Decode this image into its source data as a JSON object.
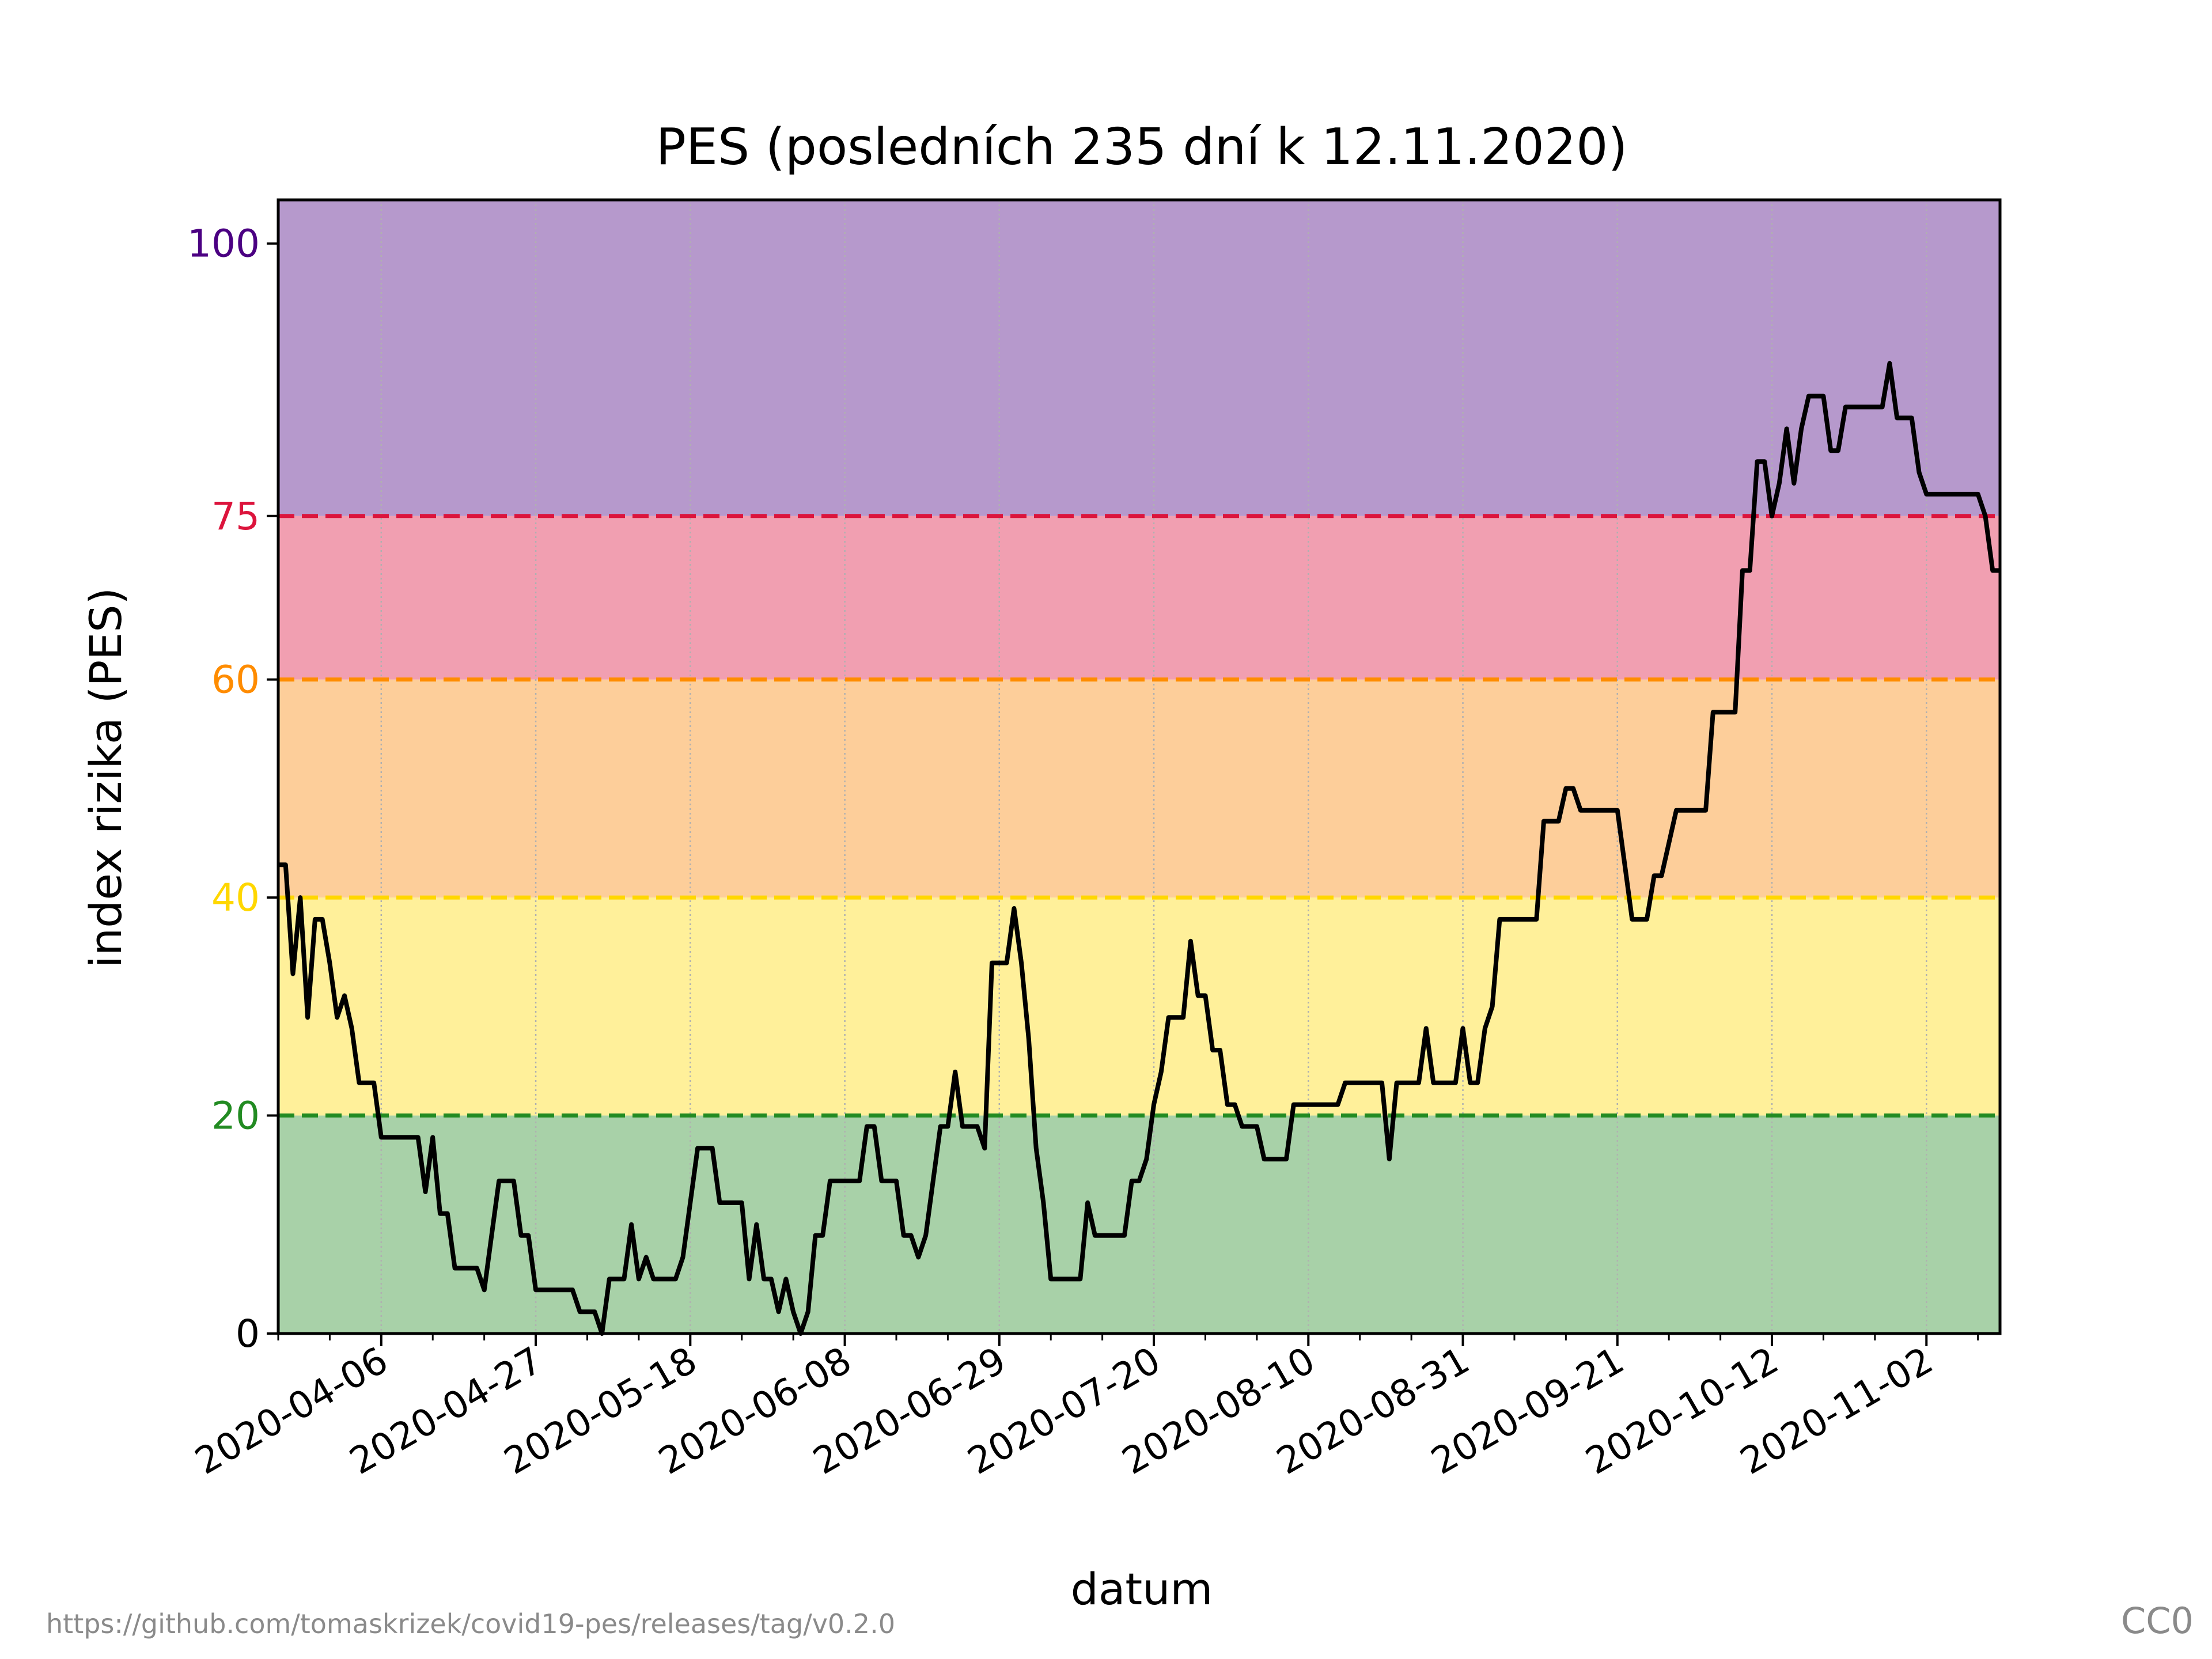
{
  "chart_data": {
    "type": "line",
    "title": "PES (posledních 235 dní k 12.11.2020)",
    "xlabel": "datum",
    "ylabel": "index rizika (PES)",
    "start_date": "2020-03-23",
    "end_date": "2020-11-12",
    "ylim": [
      0,
      100
    ],
    "yticks": [
      {
        "value": 0,
        "label": "0",
        "color": "#000000"
      },
      {
        "value": 20,
        "label": "20",
        "color": "#228b22"
      },
      {
        "value": 40,
        "label": "40",
        "color": "#ffd700"
      },
      {
        "value": 60,
        "label": "60",
        "color": "#ff8c00"
      },
      {
        "value": 75,
        "label": "75",
        "color": "#dc143c"
      },
      {
        "value": 100,
        "label": "100",
        "color": "#4b0082"
      }
    ],
    "xticks": [
      "2020-04-06",
      "2020-04-27",
      "2020-05-18",
      "2020-06-08",
      "2020-06-29",
      "2020-07-20",
      "2020-08-10",
      "2020-08-31",
      "2020-09-21",
      "2020-10-12",
      "2020-11-02"
    ],
    "bands": [
      {
        "from": 0,
        "to": 20,
        "color": "#a8d1a8"
      },
      {
        "from": 20,
        "to": 40,
        "color": "#fff09a"
      },
      {
        "from": 40,
        "to": 60,
        "color": "#fdce9a"
      },
      {
        "from": 60,
        "to": 75,
        "color": "#f19fb1"
      },
      {
        "from": 75,
        "to": 104,
        "color": "#b699cc"
      }
    ],
    "thresholds": [
      {
        "value": 20,
        "color": "#228b22"
      },
      {
        "value": 40,
        "color": "#ffd700"
      },
      {
        "value": 60,
        "color": "#ff8c00"
      },
      {
        "value": 75,
        "color": "#dc143c"
      }
    ],
    "grid": "vertical-dotted",
    "series": [
      {
        "color": "#000000",
        "points": [
          [
            "2020-03-23",
            43
          ],
          [
            "2020-03-24",
            43
          ],
          [
            "2020-03-25",
            33
          ],
          [
            "2020-03-26",
            40
          ],
          [
            "2020-03-27",
            29
          ],
          [
            "2020-03-28",
            38
          ],
          [
            "2020-03-29",
            38
          ],
          [
            "2020-03-30",
            34
          ],
          [
            "2020-03-31",
            29
          ],
          [
            "2020-04-01",
            31
          ],
          [
            "2020-04-02",
            28
          ],
          [
            "2020-04-03",
            23
          ],
          [
            "2020-04-04",
            23
          ],
          [
            "2020-04-05",
            23
          ],
          [
            "2020-04-06",
            18
          ],
          [
            "2020-04-07",
            18
          ],
          [
            "2020-04-08",
            18
          ],
          [
            "2020-04-09",
            18
          ],
          [
            "2020-04-10",
            18
          ],
          [
            "2020-04-11",
            18
          ],
          [
            "2020-04-12",
            13
          ],
          [
            "2020-04-13",
            18
          ],
          [
            "2020-04-14",
            11
          ],
          [
            "2020-04-15",
            11
          ],
          [
            "2020-04-16",
            6
          ],
          [
            "2020-04-17",
            6
          ],
          [
            "2020-04-18",
            6
          ],
          [
            "2020-04-19",
            6
          ],
          [
            "2020-04-20",
            4
          ],
          [
            "2020-04-21",
            9
          ],
          [
            "2020-04-22",
            14
          ],
          [
            "2020-04-23",
            14
          ],
          [
            "2020-04-24",
            14
          ],
          [
            "2020-04-25",
            9
          ],
          [
            "2020-04-26",
            9
          ],
          [
            "2020-04-27",
            4
          ],
          [
            "2020-04-28",
            4
          ],
          [
            "2020-04-29",
            4
          ],
          [
            "2020-04-30",
            4
          ],
          [
            "2020-05-01",
            4
          ],
          [
            "2020-05-02",
            4
          ],
          [
            "2020-05-03",
            2
          ],
          [
            "2020-05-04",
            2
          ],
          [
            "2020-05-05",
            2
          ],
          [
            "2020-05-06",
            0
          ],
          [
            "2020-05-07",
            5
          ],
          [
            "2020-05-08",
            5
          ],
          [
            "2020-05-09",
            5
          ],
          [
            "2020-05-10",
            10
          ],
          [
            "2020-05-11",
            5
          ],
          [
            "2020-05-12",
            7
          ],
          [
            "2020-05-13",
            5
          ],
          [
            "2020-05-14",
            5
          ],
          [
            "2020-05-15",
            5
          ],
          [
            "2020-05-16",
            5
          ],
          [
            "2020-05-17",
            7
          ],
          [
            "2020-05-18",
            12
          ],
          [
            "2020-05-19",
            17
          ],
          [
            "2020-05-20",
            17
          ],
          [
            "2020-05-21",
            17
          ],
          [
            "2020-05-22",
            12
          ],
          [
            "2020-05-23",
            12
          ],
          [
            "2020-05-24",
            12
          ],
          [
            "2020-05-25",
            12
          ],
          [
            "2020-05-26",
            5
          ],
          [
            "2020-05-27",
            10
          ],
          [
            "2020-05-28",
            5
          ],
          [
            "2020-05-29",
            5
          ],
          [
            "2020-05-30",
            2
          ],
          [
            "2020-05-31",
            5
          ],
          [
            "2020-06-01",
            2
          ],
          [
            "2020-06-02",
            0
          ],
          [
            "2020-06-03",
            2
          ],
          [
            "2020-06-04",
            9
          ],
          [
            "2020-06-05",
            9
          ],
          [
            "2020-06-06",
            14
          ],
          [
            "2020-06-07",
            14
          ],
          [
            "2020-06-08",
            14
          ],
          [
            "2020-06-09",
            14
          ],
          [
            "2020-06-10",
            14
          ],
          [
            "2020-06-11",
            19
          ],
          [
            "2020-06-12",
            19
          ],
          [
            "2020-06-13",
            14
          ],
          [
            "2020-06-14",
            14
          ],
          [
            "2020-06-15",
            14
          ],
          [
            "2020-06-16",
            9
          ],
          [
            "2020-06-17",
            9
          ],
          [
            "2020-06-18",
            7
          ],
          [
            "2020-06-19",
            9
          ],
          [
            "2020-06-20",
            14
          ],
          [
            "2020-06-21",
            19
          ],
          [
            "2020-06-22",
            19
          ],
          [
            "2020-06-23",
            24
          ],
          [
            "2020-06-24",
            19
          ],
          [
            "2020-06-25",
            19
          ],
          [
            "2020-06-26",
            19
          ],
          [
            "2020-06-27",
            17
          ],
          [
            "2020-06-28",
            34
          ],
          [
            "2020-06-29",
            34
          ],
          [
            "2020-06-30",
            34
          ],
          [
            "2020-07-01",
            39
          ],
          [
            "2020-07-02",
            34
          ],
          [
            "2020-07-03",
            27
          ],
          [
            "2020-07-04",
            17
          ],
          [
            "2020-07-05",
            12
          ],
          [
            "2020-07-06",
            5
          ],
          [
            "2020-07-07",
            5
          ],
          [
            "2020-07-08",
            5
          ],
          [
            "2020-07-09",
            5
          ],
          [
            "2020-07-10",
            5
          ],
          [
            "2020-07-11",
            12
          ],
          [
            "2020-07-12",
            9
          ],
          [
            "2020-07-13",
            9
          ],
          [
            "2020-07-14",
            9
          ],
          [
            "2020-07-15",
            9
          ],
          [
            "2020-07-16",
            9
          ],
          [
            "2020-07-17",
            14
          ],
          [
            "2020-07-18",
            14
          ],
          [
            "2020-07-19",
            16
          ],
          [
            "2020-07-20",
            21
          ],
          [
            "2020-07-21",
            24
          ],
          [
            "2020-07-22",
            29
          ],
          [
            "2020-07-23",
            29
          ],
          [
            "2020-07-24",
            29
          ],
          [
            "2020-07-25",
            36
          ],
          [
            "2020-07-26",
            31
          ],
          [
            "2020-07-27",
            31
          ],
          [
            "2020-07-28",
            26
          ],
          [
            "2020-07-29",
            26
          ],
          [
            "2020-07-30",
            21
          ],
          [
            "2020-07-31",
            21
          ],
          [
            "2020-08-01",
            19
          ],
          [
            "2020-08-02",
            19
          ],
          [
            "2020-08-03",
            19
          ],
          [
            "2020-08-04",
            16
          ],
          [
            "2020-08-05",
            16
          ],
          [
            "2020-08-06",
            16
          ],
          [
            "2020-08-07",
            16
          ],
          [
            "2020-08-08",
            21
          ],
          [
            "2020-08-09",
            21
          ],
          [
            "2020-08-10",
            21
          ],
          [
            "2020-08-11",
            21
          ],
          [
            "2020-08-12",
            21
          ],
          [
            "2020-08-13",
            21
          ],
          [
            "2020-08-14",
            21
          ],
          [
            "2020-08-15",
            23
          ],
          [
            "2020-08-16",
            23
          ],
          [
            "2020-08-17",
            23
          ],
          [
            "2020-08-18",
            23
          ],
          [
            "2020-08-19",
            23
          ],
          [
            "2020-08-20",
            23
          ],
          [
            "2020-08-21",
            16
          ],
          [
            "2020-08-22",
            23
          ],
          [
            "2020-08-23",
            23
          ],
          [
            "2020-08-24",
            23
          ],
          [
            "2020-08-25",
            23
          ],
          [
            "2020-08-26",
            28
          ],
          [
            "2020-08-27",
            23
          ],
          [
            "2020-08-28",
            23
          ],
          [
            "2020-08-29",
            23
          ],
          [
            "2020-08-30",
            23
          ],
          [
            "2020-08-31",
            28
          ],
          [
            "2020-09-01",
            23
          ],
          [
            "2020-09-02",
            23
          ],
          [
            "2020-09-03",
            28
          ],
          [
            "2020-09-04",
            30
          ],
          [
            "2020-09-05",
            38
          ],
          [
            "2020-09-06",
            38
          ],
          [
            "2020-09-07",
            38
          ],
          [
            "2020-09-08",
            38
          ],
          [
            "2020-09-09",
            38
          ],
          [
            "2020-09-10",
            38
          ],
          [
            "2020-09-11",
            47
          ],
          [
            "2020-09-12",
            47
          ],
          [
            "2020-09-13",
            47
          ],
          [
            "2020-09-14",
            50
          ],
          [
            "2020-09-15",
            50
          ],
          [
            "2020-09-16",
            48
          ],
          [
            "2020-09-17",
            48
          ],
          [
            "2020-09-18",
            48
          ],
          [
            "2020-09-19",
            48
          ],
          [
            "2020-09-20",
            48
          ],
          [
            "2020-09-21",
            48
          ],
          [
            "2020-09-22",
            43
          ],
          [
            "2020-09-23",
            38
          ],
          [
            "2020-09-24",
            38
          ],
          [
            "2020-09-25",
            38
          ],
          [
            "2020-09-26",
            42
          ],
          [
            "2020-09-27",
            42
          ],
          [
            "2020-09-28",
            45
          ],
          [
            "2020-09-29",
            48
          ],
          [
            "2020-09-30",
            48
          ],
          [
            "2020-10-01",
            48
          ],
          [
            "2020-10-02",
            48
          ],
          [
            "2020-10-03",
            48
          ],
          [
            "2020-10-04",
            57
          ],
          [
            "2020-10-05",
            57
          ],
          [
            "2020-10-06",
            57
          ],
          [
            "2020-10-07",
            57
          ],
          [
            "2020-10-08",
            70
          ],
          [
            "2020-10-09",
            70
          ],
          [
            "2020-10-10",
            80
          ],
          [
            "2020-10-11",
            80
          ],
          [
            "2020-10-12",
            75
          ],
          [
            "2020-10-13",
            78
          ],
          [
            "2020-10-14",
            83
          ],
          [
            "2020-10-15",
            78
          ],
          [
            "2020-10-16",
            83
          ],
          [
            "2020-10-17",
            86
          ],
          [
            "2020-10-18",
            86
          ],
          [
            "2020-10-19",
            86
          ],
          [
            "2020-10-20",
            81
          ],
          [
            "2020-10-21",
            81
          ],
          [
            "2020-10-22",
            85
          ],
          [
            "2020-10-23",
            85
          ],
          [
            "2020-10-24",
            85
          ],
          [
            "2020-10-25",
            85
          ],
          [
            "2020-10-26",
            85
          ],
          [
            "2020-10-27",
            85
          ],
          [
            "2020-10-28",
            89
          ],
          [
            "2020-10-29",
            84
          ],
          [
            "2020-10-30",
            84
          ],
          [
            "2020-10-31",
            84
          ],
          [
            "2020-11-01",
            79
          ],
          [
            "2020-11-02",
            77
          ],
          [
            "2020-11-03",
            77
          ],
          [
            "2020-11-04",
            77
          ],
          [
            "2020-11-05",
            77
          ],
          [
            "2020-11-06",
            77
          ],
          [
            "2020-11-07",
            77
          ],
          [
            "2020-11-08",
            77
          ],
          [
            "2020-11-09",
            77
          ],
          [
            "2020-11-10",
            75
          ],
          [
            "2020-11-11",
            70
          ],
          [
            "2020-11-12",
            70
          ]
        ]
      }
    ]
  },
  "footer": {
    "source_url": "https://github.com/tomaskrizek/covid19-pes/releases/tag/v0.2.0",
    "license": "CC0"
  }
}
